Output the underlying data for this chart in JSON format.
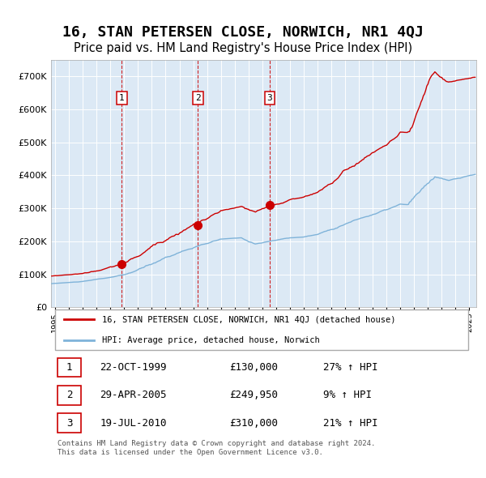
{
  "title": "16, STAN PETERSEN CLOSE, NORWICH, NR1 4QJ",
  "subtitle": "Price paid vs. HM Land Registry's House Price Index (HPI)",
  "title_fontsize": 13,
  "subtitle_fontsize": 10.5,
  "plot_bg_color": "#dce9f5",
  "red_line_color": "#cc0000",
  "blue_line_color": "#7fb3d9",
  "marker_color": "#cc0000",
  "vline_color": "#cc0000",
  "grid_color": "#ffffff",
  "legend_label_red": "16, STAN PETERSEN CLOSE, NORWICH, NR1 4QJ (detached house)",
  "legend_label_blue": "HPI: Average price, detached house, Norwich",
  "transactions": [
    {
      "label": "1",
      "date_num": 1999.81,
      "price": 130000,
      "note": "22-OCT-1999",
      "pct": "27%",
      "dir": "↑"
    },
    {
      "label": "2",
      "date_num": 2005.33,
      "price": 249950,
      "note": "29-APR-2005",
      "pct": "9%",
      "dir": "↑"
    },
    {
      "label": "3",
      "date_num": 2010.54,
      "price": 310000,
      "note": "19-JUL-2010",
      "pct": "21%",
      "dir": "↑"
    }
  ],
  "table_rows": [
    {
      "num": "1",
      "date": "22-OCT-1999",
      "price": "£130,000",
      "hpi": "27% ↑ HPI"
    },
    {
      "num": "2",
      "date": "29-APR-2005",
      "price": "£249,950",
      "hpi": "9% ↑ HPI"
    },
    {
      "num": "3",
      "date": "19-JUL-2010",
      "price": "£310,000",
      "hpi": "21% ↑ HPI"
    }
  ],
  "footer": "Contains HM Land Registry data © Crown copyright and database right 2024.\nThis data is licensed under the Open Government Licence v3.0.",
  "ylim": [
    0,
    750000
  ],
  "yticks": [
    0,
    100000,
    200000,
    300000,
    400000,
    500000,
    600000,
    700000
  ],
  "ytick_labels": [
    "£0",
    "£100K",
    "£200K",
    "£300K",
    "£400K",
    "£500K",
    "£600K",
    "£700K"
  ],
  "xlim_start": 1994.7,
  "xlim_end": 2025.5
}
